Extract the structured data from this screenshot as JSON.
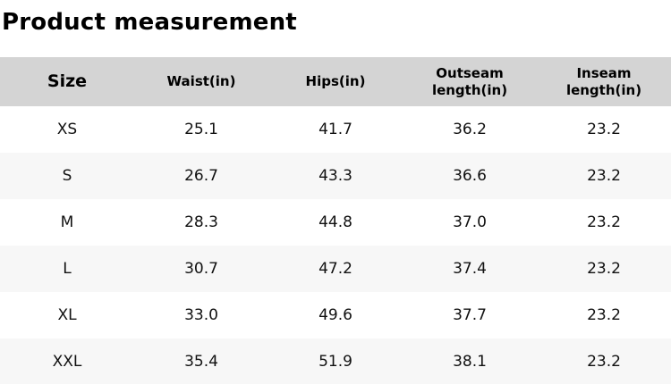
{
  "page": {
    "title": "Product measurement"
  },
  "table": {
    "columns": [
      "Size",
      "Waist(in)",
      "Hips(in)",
      "Outseam length(in)",
      "Inseam length(in)"
    ],
    "rows": [
      {
        "cells": [
          "XS",
          "25.1",
          "41.7",
          "36.2",
          "23.2"
        ]
      },
      {
        "cells": [
          "S",
          "26.7",
          "43.3",
          "36.6",
          "23.2"
        ]
      },
      {
        "cells": [
          "M",
          "28.3",
          "44.8",
          "37.0",
          "23.2"
        ]
      },
      {
        "cells": [
          "L",
          "30.7",
          "47.2",
          "37.4",
          "23.2"
        ]
      },
      {
        "cells": [
          "XL",
          "33.0",
          "49.6",
          "37.7",
          "23.2"
        ]
      },
      {
        "cells": [
          "XXL",
          "35.4",
          "51.9",
          "38.1",
          "23.2"
        ]
      }
    ]
  },
  "colors": {
    "header_bg": "#d4d4d4",
    "row_alt_bg": "#f7f7f7",
    "text": "#111111",
    "title_text": "#000000"
  }
}
